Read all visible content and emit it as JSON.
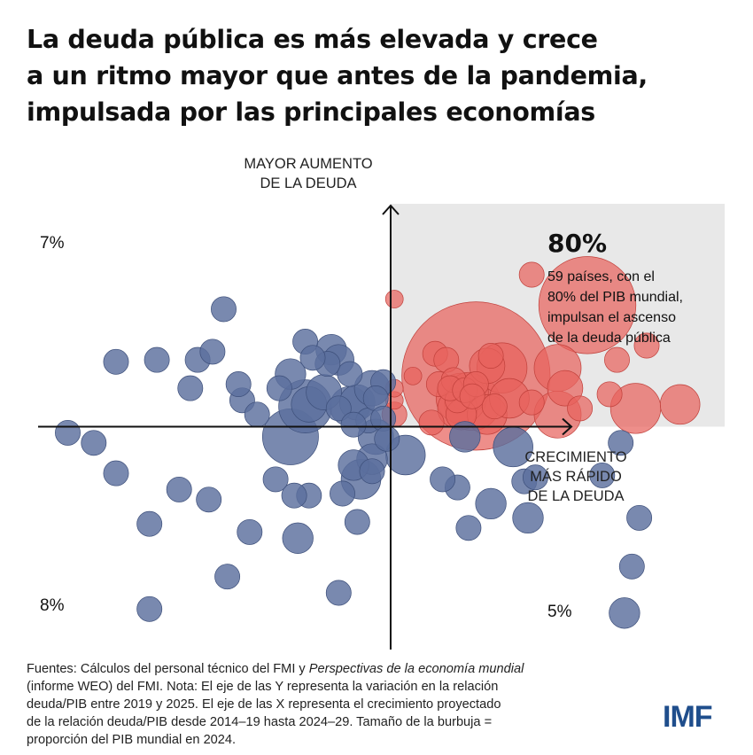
{
  "title_lines": [
    "La deuda pública es más elevada y crece",
    "a un ritmo mayor que antes de la pandemia,",
    "impulsada por las principales economías"
  ],
  "y_axis_label_lines": [
    "MAYOR AUMENTO",
    "DE LA DEUDA"
  ],
  "x_axis_label_lines": [
    "CRECIMIENTO",
    "MÁS RÁPIDO",
    "DE LA DEUDA"
  ],
  "quadrant_labels": {
    "top_left": "7%",
    "bottom_left": "8%",
    "bottom_right": "5%"
  },
  "callout": {
    "value": "80%",
    "lines": [
      "59 países, con el",
      "80% del PIB mundial,",
      "impulsan el ascenso",
      "de la deuda pública"
    ]
  },
  "note_lines": [
    "Fuentes: Cálculos del personal técnico del FMI y ",
    "(informe WEO) del FMI. Nota: El eje de las Y representa la variación en la relación",
    "deuda/PIB entre 2019 y 2025. El eje de las X representa el crecimiento proyectado",
    "de la relación deuda/PIB desde 2014–19 hasta 2024–29. Tamaño de la burbuja =",
    "proporción del PIB mundial en 2024."
  ],
  "note_italic": "Perspectivas de la economía mundial",
  "logo": "IMF",
  "colors": {
    "red_fill": "#e8635d",
    "red_stroke": "#c0403b",
    "blue_fill": "#5b6f9e",
    "blue_stroke": "#3d4f7a",
    "highlight": "#e8e8e8",
    "logo": "#1f4e8c"
  },
  "chart_data": {
    "type": "scatter",
    "series": [
      {
        "name": "",
        "points": [
          [
            3.8,
            7.5,
            0.02
          ],
          [
            5.3,
            6.0,
            0.3
          ],
          [
            2.3,
            2.5,
            0.7
          ],
          [
            3.0,
            2.9,
            0.08
          ],
          [
            4.5,
            2.9,
            0.07
          ],
          [
            6.6,
            0.9,
            0.08
          ],
          [
            2.7,
            3.5,
            0.02
          ],
          [
            1.8,
            1.3,
            0.02
          ],
          [
            2.1,
            1.7,
            0.05
          ],
          [
            1.3,
            2.1,
            0.02
          ],
          [
            2.6,
            3.0,
            0.04
          ],
          [
            1.9,
            1.4,
            0.08
          ],
          [
            1.2,
            3.6,
            0.02
          ],
          [
            1.5,
            3.3,
            0.02
          ],
          [
            4.7,
            1.9,
            0.04
          ],
          [
            2.2,
            1.2,
            0.1
          ],
          [
            1.8,
            0.9,
            0.05
          ],
          [
            2.6,
            0.6,
            0.05
          ],
          [
            3.2,
            1.4,
            0.05
          ],
          [
            1.1,
            0.2,
            0.02
          ],
          [
            1.9,
            0.6,
            0.03
          ],
          [
            0.6,
            2.5,
            0.01
          ],
          [
            4.5,
            0.6,
            0.07
          ],
          [
            7.8,
            1.1,
            0.05
          ],
          [
            5.1,
            0.9,
            0.02
          ],
          [
            0.1,
            0.6,
            0.02
          ],
          [
            1.7,
            2.3,
            0.02
          ],
          [
            0.1,
            1.3,
            0.01
          ],
          [
            1.6,
            1.9,
            0.02
          ],
          [
            2.0,
            1.8,
            0.02
          ],
          [
            2.3,
            2.1,
            0.02
          ],
          [
            2.2,
            1.5,
            0.02
          ],
          [
            6.1,
            3.3,
            0.02
          ],
          [
            6.9,
            4.0,
            0.02
          ],
          [
            2.8,
            1.0,
            0.02
          ],
          [
            3.8,
            1.2,
            0.02
          ],
          [
            5.9,
            1.6,
            0.02
          ],
          [
            0.1,
            1.9,
            0.01
          ],
          [
            0.1,
            6.3,
            0.01
          ]
        ]
      },
      {
        "name": "",
        "points": [
          [
            -4.5,
            5.8,
            0.02
          ],
          [
            -5.2,
            3.3,
            0.02
          ],
          [
            -7.4,
            3.2,
            0.02
          ],
          [
            -6.3,
            3.3,
            0.02
          ],
          [
            -3.0,
            1.9,
            0.02
          ],
          [
            -2.3,
            1.0,
            0.09
          ],
          [
            -2.2,
            1.1,
            0.04
          ],
          [
            -1.8,
            1.7,
            0.04
          ],
          [
            -1.1,
            2.6,
            0.02
          ],
          [
            -1.1,
            1.0,
            0.05
          ],
          [
            -1.4,
            0.9,
            0.02
          ],
          [
            -0.9,
            1.2,
            0.04
          ],
          [
            -0.5,
            1.9,
            0.04
          ],
          [
            -0.2,
            2.2,
            0.02
          ],
          [
            -0.6,
            0.3,
            0.02
          ],
          [
            -0.4,
            1.4,
            0.02
          ],
          [
            -2.7,
            2.6,
            0.03
          ],
          [
            -1.6,
            3.8,
            0.03
          ],
          [
            -1.4,
            3.3,
            0.03
          ],
          [
            -1.7,
            3.1,
            0.02
          ],
          [
            -4.0,
            1.3,
            0.02
          ],
          [
            -5.4,
            1.9,
            0.02
          ],
          [
            -3.6,
            0.6,
            0.02
          ],
          [
            -4.1,
            2.1,
            0.02
          ],
          [
            -4.8,
            3.7,
            0.02
          ],
          [
            -2.3,
            4.2,
            0.02
          ],
          [
            -2.1,
            3.4,
            0.02
          ],
          [
            -0.2,
            0.4,
            0.02
          ],
          [
            -2.7,
            -0.5,
            0.1
          ],
          [
            -0.4,
            -0.5,
            0.04
          ],
          [
            0.4,
            -1.4,
            0.05
          ],
          [
            -0.5,
            -1.6,
            0.03
          ],
          [
            -0.8,
            -2.6,
            0.05
          ],
          [
            -1.0,
            -1.9,
            0.03
          ],
          [
            -0.5,
            -2.2,
            0.02
          ],
          [
            2.0,
            -0.5,
            0.03
          ],
          [
            3.3,
            -1.0,
            0.05
          ],
          [
            2.7,
            -3.8,
            0.03
          ],
          [
            3.7,
            -4.5,
            0.03
          ],
          [
            1.8,
            -3.0,
            0.02
          ],
          [
            2.1,
            -5.0,
            0.02
          ],
          [
            3.6,
            -2.7,
            0.02
          ],
          [
            3.9,
            -2.5,
            0.02
          ],
          [
            5.7,
            -2.4,
            0.02
          ],
          [
            6.2,
            -0.8,
            0.02
          ],
          [
            -0.9,
            -4.7,
            0.02
          ],
          [
            -2.5,
            -5.5,
            0.03
          ],
          [
            -4.9,
            -3.6,
            0.02
          ],
          [
            -5.7,
            -3.1,
            0.02
          ],
          [
            -6.5,
            -4.8,
            0.02
          ],
          [
            -7.4,
            -2.3,
            0.02
          ],
          [
            -8.7,
            -0.3,
            0.02
          ],
          [
            -8.0,
            -0.8,
            0.02
          ],
          [
            -2.2,
            -3.4,
            0.02
          ],
          [
            -2.6,
            -3.4,
            0.02
          ],
          [
            -3.8,
            -5.2,
            0.02
          ],
          [
            -4.4,
            -7.4,
            0.02
          ],
          [
            -6.5,
            -9.0,
            0.02
          ],
          [
            -1.4,
            -8.2,
            0.02
          ],
          [
            6.3,
            -9.2,
            0.03
          ],
          [
            -1.3,
            -3.3,
            0.02
          ],
          [
            -0.1,
            -0.6,
            0.02
          ],
          [
            -3.1,
            -2.6,
            0.02
          ],
          [
            1.4,
            -2.6,
            0.02
          ],
          [
            6.5,
            -6.9,
            0.02
          ],
          [
            6.7,
            -4.5,
            0.02
          ],
          [
            -1.0,
            0.1,
            0.02
          ]
        ]
      }
    ],
    "xlim": [
      -9.5,
      9.0
    ],
    "ylim": [
      -11.0,
      11.0
    ],
    "grid": false,
    "highlight_quadrant": "top-right"
  }
}
